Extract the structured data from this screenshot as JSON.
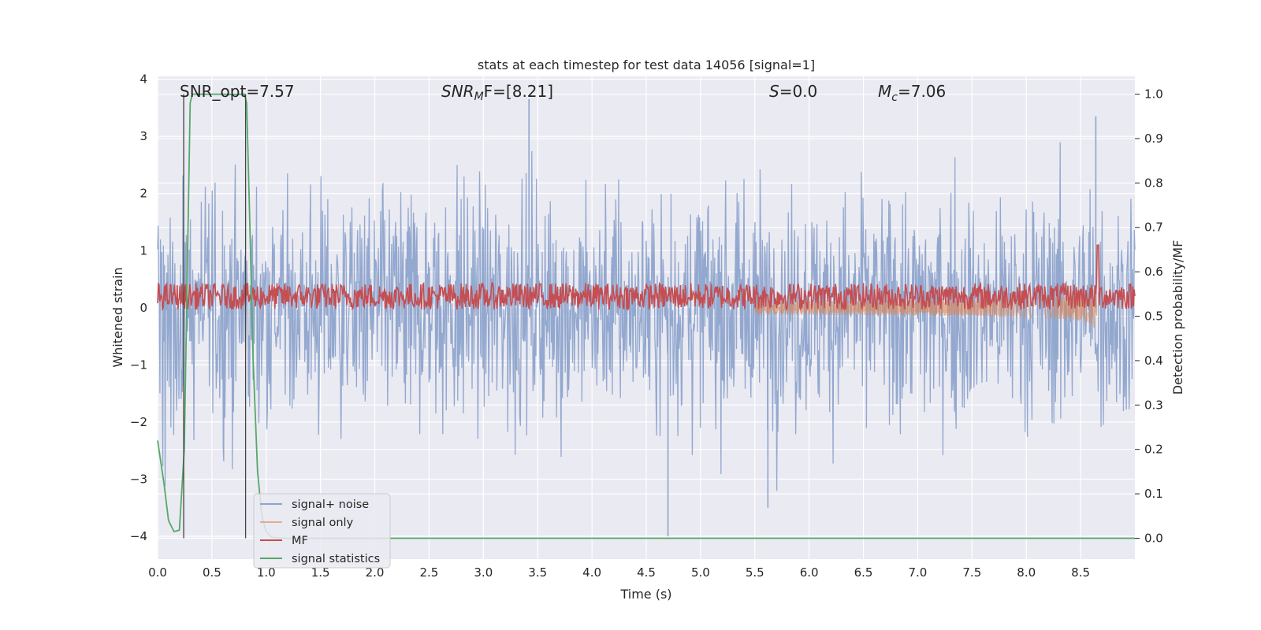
{
  "chart_data": {
    "type": "line",
    "title": "stats at each timestep for test data 14056 [signal=1]",
    "xlabel": "Time (s)",
    "ylabel": "Whitened strain",
    "ylabel_right": "Detection probability/MF",
    "xlim": [
      0.0,
      9.0
    ],
    "ylim": [
      -4.4,
      4.05
    ],
    "ylim_right": [
      -0.047,
      1.04
    ],
    "grid": true,
    "legend_position": "lower-left",
    "x_ticks": [
      "0.0",
      "0.5",
      "1.0",
      "1.5",
      "2.0",
      "2.5",
      "3.0",
      "3.5",
      "4.0",
      "4.5",
      "5.0",
      "5.5",
      "6.0",
      "6.5",
      "7.0",
      "7.5",
      "8.0",
      "8.5"
    ],
    "y_ticks_left": [
      "4",
      "3",
      "2",
      "1",
      "0",
      "−1",
      "−2",
      "−3",
      "−4"
    ],
    "y_ticks_right": [
      "1.0",
      "0.9",
      "0.8",
      "0.7",
      "0.6",
      "0.5",
      "0.4",
      "0.3",
      "0.2",
      "0.1",
      "0.0"
    ],
    "annotations": {
      "snr_opt": "SNR_opt=7.57",
      "snr_mf_sym": "SNR",
      "snr_mf_sub": "M",
      "snr_mf_rest": "F=[8.21]",
      "s_sym": "S",
      "s_rest": "=0.0",
      "mc_sym": "M",
      "mc_sub": "c",
      "mc_rest": "=7.06"
    },
    "vlines_x": [
      0.24,
      0.81
    ],
    "series": [
      {
        "name": "signal+ noise",
        "color": "#8ea4cc",
        "axis": "left",
        "envelope": "gaussian noise, std ~1, peaks to about ±3.6",
        "notable_peaks": [
          {
            "x": 3.42,
            "y": 3.65
          },
          {
            "x": 4.7,
            "y": -4.0
          },
          {
            "x": 5.62,
            "y": -3.5
          },
          {
            "x": 8.64,
            "y": 3.35
          }
        ]
      },
      {
        "name": "signal only",
        "color": "#dd8452",
        "axis": "left",
        "type": "chirp",
        "x_start": 5.5,
        "x_merger": 8.65,
        "amplitude_start": 0.02,
        "amplitude_peak": 0.55
      },
      {
        "name": "MF",
        "color": "#c44e52",
        "axis": "right",
        "baseline": 0.545,
        "noise_band": [
          0.52,
          0.58
        ],
        "peak": {
          "x": 8.66,
          "y": 0.66
        }
      },
      {
        "name": "signal statistics",
        "color": "#55a868",
        "axis": "right",
        "x": [
          0.0,
          0.06,
          0.1,
          0.15,
          0.2,
          0.245,
          0.28,
          0.3,
          0.32,
          0.35,
          0.5,
          0.6,
          0.7,
          0.76,
          0.8,
          0.82,
          0.85,
          0.88,
          0.92,
          0.96,
          1.0,
          1.05,
          1.2,
          2.0,
          4.0,
          6.0,
          8.0,
          9.0
        ],
        "values": [
          0.22,
          0.12,
          0.04,
          0.015,
          0.018,
          0.2,
          0.7,
          0.98,
          1.0,
          1.0,
          1.0,
          1.0,
          0.999,
          1.0,
          1.0,
          0.98,
          0.7,
          0.4,
          0.15,
          0.05,
          0.015,
          0.002,
          0.0,
          0.0,
          0.0,
          0.0,
          0.0,
          0.0
        ]
      }
    ]
  }
}
